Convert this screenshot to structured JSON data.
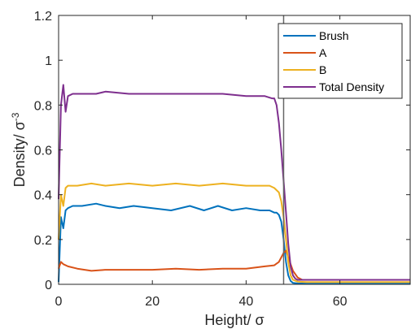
{
  "chart_data": {
    "type": "line",
    "xlabel": "Height/ σ",
    "ylabel_main": "Density/ σ",
    "ylabel_sup": "-3",
    "xlim": [
      0,
      75
    ],
    "ylim": [
      0,
      1.2
    ],
    "xticks": [
      0,
      20,
      40,
      60
    ],
    "yticks": [
      0,
      0.2,
      0.4,
      0.6,
      0.8,
      1,
      1.2
    ],
    "grid": false,
    "legend_position": "top-right",
    "vertical_line_x": 48,
    "series": [
      {
        "name": "Brush",
        "color": "#0072BD",
        "x": [
          0,
          0.5,
          1,
          1.5,
          2,
          3,
          5,
          8,
          10,
          13,
          16,
          20,
          24,
          28,
          31,
          34,
          37,
          40,
          43,
          45,
          46,
          46.5,
          47,
          47.5,
          48,
          48.5,
          49,
          49.5,
          50,
          51,
          53,
          60,
          75
        ],
        "y": [
          0.01,
          0.3,
          0.25,
          0.33,
          0.34,
          0.35,
          0.35,
          0.36,
          0.35,
          0.34,
          0.35,
          0.34,
          0.33,
          0.35,
          0.33,
          0.35,
          0.33,
          0.34,
          0.33,
          0.33,
          0.32,
          0.32,
          0.31,
          0.28,
          0.2,
          0.1,
          0.04,
          0.015,
          0.006,
          0.004,
          0.003,
          0.003,
          0.003
        ]
      },
      {
        "name": "A",
        "color": "#D95319",
        "x": [
          0,
          0.5,
          1,
          2,
          4,
          7,
          10,
          15,
          20,
          25,
          30,
          35,
          40,
          44,
          46,
          47,
          48,
          48.5,
          49,
          50,
          51,
          52,
          55,
          60,
          75
        ],
        "y": [
          0.07,
          0.1,
          0.09,
          0.08,
          0.07,
          0.06,
          0.065,
          0.065,
          0.065,
          0.07,
          0.065,
          0.07,
          0.07,
          0.08,
          0.085,
          0.1,
          0.14,
          0.15,
          0.12,
          0.06,
          0.03,
          0.02,
          0.02,
          0.02,
          0.02
        ]
      },
      {
        "name": "B",
        "color": "#EDB120",
        "x": [
          0,
          0.5,
          1,
          1.5,
          2,
          4,
          7,
          10,
          15,
          20,
          25,
          30,
          35,
          40,
          45,
          46,
          47,
          47.5,
          48,
          48.5,
          49,
          49.5,
          50,
          51,
          53,
          60,
          75
        ],
        "y": [
          0.2,
          0.4,
          0.35,
          0.43,
          0.44,
          0.44,
          0.45,
          0.44,
          0.45,
          0.44,
          0.45,
          0.44,
          0.45,
          0.44,
          0.44,
          0.43,
          0.41,
          0.37,
          0.3,
          0.2,
          0.1,
          0.04,
          0.02,
          0.012,
          0.01,
          0.01,
          0.01
        ]
      },
      {
        "name": "Total Density",
        "color": "#7E2F8E",
        "x": [
          0,
          0.5,
          1,
          1.5,
          2,
          3,
          5,
          8,
          10,
          15,
          20,
          25,
          30,
          35,
          40,
          44,
          45.5,
          46,
          46.5,
          47,
          47.5,
          48,
          48.5,
          49,
          49.5,
          50,
          50.5,
          51,
          53,
          60,
          75
        ],
        "y": [
          0.38,
          0.8,
          0.89,
          0.77,
          0.84,
          0.85,
          0.85,
          0.85,
          0.86,
          0.85,
          0.85,
          0.85,
          0.85,
          0.85,
          0.84,
          0.84,
          0.83,
          0.83,
          0.8,
          0.72,
          0.6,
          0.46,
          0.32,
          0.18,
          0.08,
          0.04,
          0.025,
          0.02,
          0.02,
          0.02,
          0.02
        ]
      }
    ]
  }
}
